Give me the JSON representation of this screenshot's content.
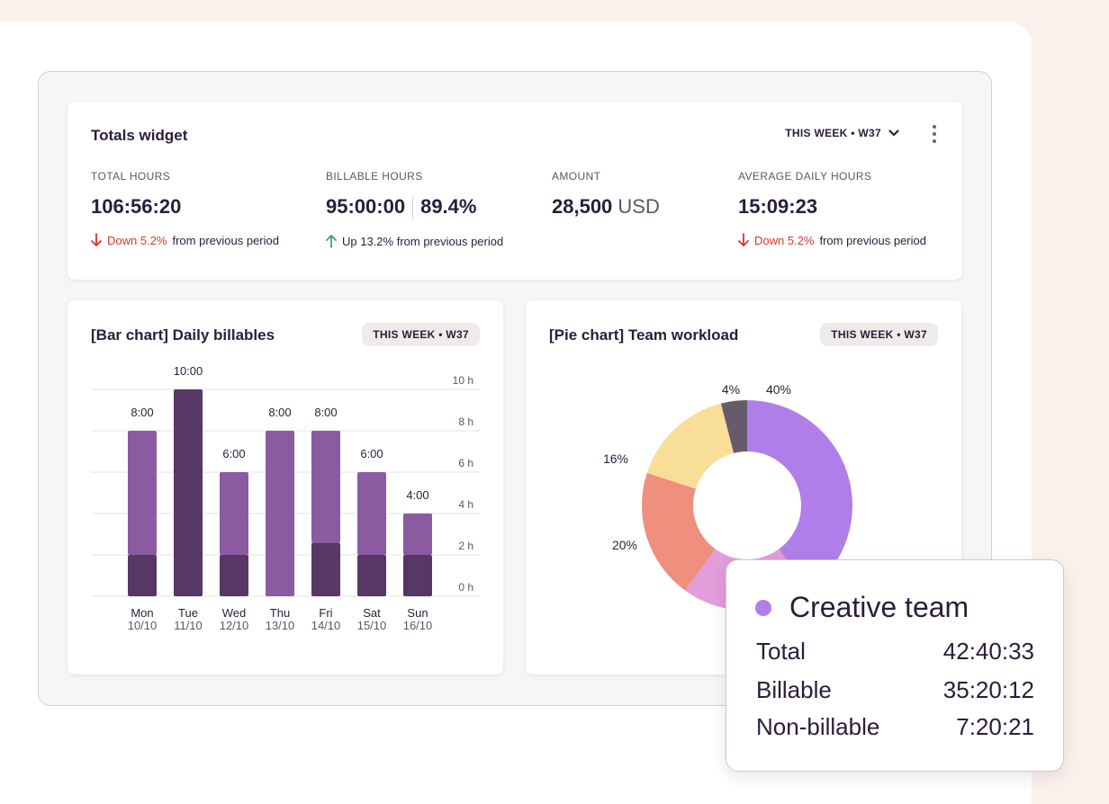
{
  "totals": {
    "title": "Totals widget",
    "period": "THIS WEEK • W37",
    "metrics": [
      {
        "label": "TOTAL HOURS",
        "value": "106:56:20",
        "change": "Down 5.2%",
        "suffix": "from previous period"
      },
      {
        "label": "BILLABLE HOURS",
        "value": "95:00:00",
        "value2": "89.4%",
        "change": "Up 13.2% from previous period"
      },
      {
        "label": "AMOUNT",
        "value": "28,500",
        "unit": "USD"
      },
      {
        "label": "AVERAGE DAILY HOURS",
        "value": "15:09:23",
        "change": "Down 5.2%",
        "suffix": "from previous period"
      }
    ]
  },
  "bar_card": {
    "title": "[Bar chart] Daily billables",
    "period": "THIS WEEK • W37"
  },
  "pie_card": {
    "title": "[Pie chart] Team workload",
    "period": "THIS WEEK • W37"
  },
  "tooltip": {
    "team": "Creative team",
    "rows": [
      {
        "label": "Total",
        "value": "42:40:33"
      },
      {
        "label": "Billable",
        "value": "35:20:12"
      },
      {
        "label": "Non-billable",
        "value": "7:20:21"
      }
    ]
  },
  "colors": {
    "up": "#3aa66b",
    "down": "#d6362b"
  },
  "chart_data": [
    {
      "type": "bar",
      "title": "[Bar chart] Daily billables",
      "categories": [
        {
          "day": "Mon",
          "date": "10/10"
        },
        {
          "day": "Tue",
          "date": "11/10"
        },
        {
          "day": "Wed",
          "date": "12/10"
        },
        {
          "day": "Thu",
          "date": "13/10"
        },
        {
          "day": "Fri",
          "date": "14/10"
        },
        {
          "day": "Sat",
          "date": "15/10"
        },
        {
          "day": "Sun",
          "date": "16/10"
        }
      ],
      "totals": [
        8,
        10,
        6,
        8,
        8,
        6,
        4
      ],
      "value_labels": [
        "8:00",
        "10:00",
        "6:00",
        "8:00",
        "8:00",
        "6:00",
        "4:00"
      ],
      "series": [
        {
          "name": "dark",
          "color": "#563766",
          "values": [
            2,
            10,
            2,
            0,
            2.6,
            2,
            2
          ]
        },
        {
          "name": "light",
          "color": "#8b5ba1",
          "values": [
            6,
            0,
            4,
            8,
            5.4,
            4,
            2
          ]
        }
      ],
      "y_ticks": [
        "0 h",
        "2 h",
        "4 h",
        "6 h",
        "8 h",
        "10 h"
      ],
      "ylim": [
        0,
        10
      ],
      "y_axis_side": "right"
    },
    {
      "type": "pie",
      "title": "[Pie chart] Team workload",
      "donut": true,
      "slices": [
        {
          "name": "Creative team",
          "value": 40,
          "label": "40%",
          "color": "#b07ee8"
        },
        {
          "name": "",
          "value": 20,
          "label": "",
          "color": "#e29ddb"
        },
        {
          "name": "",
          "value": 20,
          "label": "20%",
          "color": "#ef8f7e"
        },
        {
          "name": "",
          "value": 16,
          "label": "16%",
          "color": "#f8de97"
        },
        {
          "name": "",
          "value": 4,
          "label": "4%",
          "color": "#675b6b"
        }
      ]
    }
  ]
}
